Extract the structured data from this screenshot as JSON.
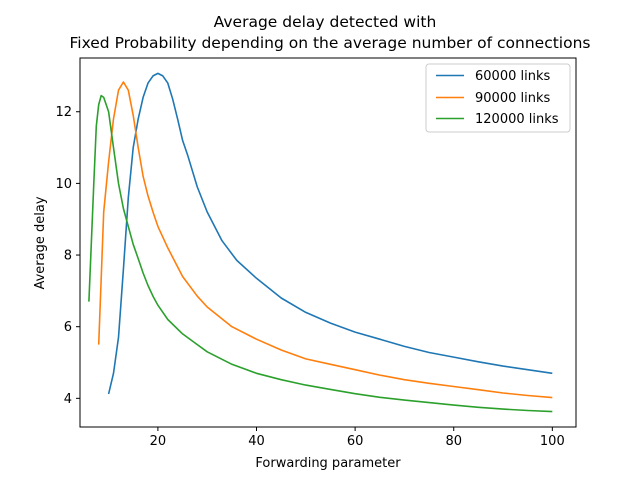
{
  "chart_data": {
    "type": "line",
    "title_lines": [
      "Average delay detected with",
      "Fixed Probability depending on the average number of connections"
    ],
    "xlabel": "Forwarding parameter",
    "ylabel": "Average delay",
    "xlim": [
      4.2,
      104.8
    ],
    "ylim": [
      3.2,
      13.5
    ],
    "xticks": [
      20,
      40,
      60,
      80,
      100
    ],
    "yticks": [
      4,
      6,
      8,
      10,
      12
    ],
    "legend_position": "top-right",
    "series": [
      {
        "name": "60000 links",
        "color": "#1f77b4",
        "points": [
          [
            10,
            4.12
          ],
          [
            11,
            4.7
          ],
          [
            12,
            5.7
          ],
          [
            13,
            7.6
          ],
          [
            14,
            9.6
          ],
          [
            15,
            11.0
          ],
          [
            16,
            11.8
          ],
          [
            17,
            12.4
          ],
          [
            18,
            12.8
          ],
          [
            19,
            13.0
          ],
          [
            20,
            13.07
          ],
          [
            21,
            13.0
          ],
          [
            22,
            12.8
          ],
          [
            23,
            12.35
          ],
          [
            24,
            11.8
          ],
          [
            25,
            11.2
          ],
          [
            26,
            10.8
          ],
          [
            28,
            9.9
          ],
          [
            30,
            9.2
          ],
          [
            33,
            8.4
          ],
          [
            36,
            7.85
          ],
          [
            40,
            7.35
          ],
          [
            45,
            6.8
          ],
          [
            50,
            6.4
          ],
          [
            55,
            6.1
          ],
          [
            60,
            5.85
          ],
          [
            65,
            5.65
          ],
          [
            70,
            5.45
          ],
          [
            75,
            5.28
          ],
          [
            80,
            5.15
          ],
          [
            85,
            5.02
          ],
          [
            90,
            4.9
          ],
          [
            95,
            4.8
          ],
          [
            100,
            4.7
          ]
        ]
      },
      {
        "name": "90000 links",
        "color": "#ff7f0e",
        "points": [
          [
            8,
            5.5
          ],
          [
            9,
            9.2
          ],
          [
            10,
            10.6
          ],
          [
            11,
            11.8
          ],
          [
            12,
            12.6
          ],
          [
            13,
            12.83
          ],
          [
            14,
            12.6
          ],
          [
            15,
            11.9
          ],
          [
            16,
            11.0
          ],
          [
            17,
            10.2
          ],
          [
            18,
            9.65
          ],
          [
            19,
            9.2
          ],
          [
            20,
            8.8
          ],
          [
            22,
            8.2
          ],
          [
            25,
            7.4
          ],
          [
            28,
            6.85
          ],
          [
            30,
            6.55
          ],
          [
            35,
            6.0
          ],
          [
            40,
            5.65
          ],
          [
            45,
            5.35
          ],
          [
            50,
            5.1
          ],
          [
            55,
            4.95
          ],
          [
            60,
            4.8
          ],
          [
            65,
            4.65
          ],
          [
            70,
            4.52
          ],
          [
            75,
            4.42
          ],
          [
            80,
            4.33
          ],
          [
            85,
            4.24
          ],
          [
            90,
            4.15
          ],
          [
            95,
            4.08
          ],
          [
            100,
            4.02
          ]
        ]
      },
      {
        "name": "120000 links",
        "color": "#2ca02c",
        "points": [
          [
            6,
            6.7
          ],
          [
            7,
            10.0
          ],
          [
            7.5,
            11.6
          ],
          [
            8,
            12.2
          ],
          [
            8.5,
            12.45
          ],
          [
            9,
            12.4
          ],
          [
            10,
            12.0
          ],
          [
            11,
            11.0
          ],
          [
            12,
            10.0
          ],
          [
            13,
            9.3
          ],
          [
            14,
            8.8
          ],
          [
            15,
            8.3
          ],
          [
            16,
            7.9
          ],
          [
            17,
            7.5
          ],
          [
            18,
            7.15
          ],
          [
            19,
            6.85
          ],
          [
            20,
            6.6
          ],
          [
            22,
            6.2
          ],
          [
            25,
            5.8
          ],
          [
            28,
            5.5
          ],
          [
            30,
            5.3
          ],
          [
            35,
            4.95
          ],
          [
            40,
            4.7
          ],
          [
            45,
            4.52
          ],
          [
            50,
            4.37
          ],
          [
            55,
            4.25
          ],
          [
            60,
            4.13
          ],
          [
            65,
            4.03
          ],
          [
            70,
            3.95
          ],
          [
            75,
            3.88
          ],
          [
            80,
            3.81
          ],
          [
            85,
            3.75
          ],
          [
            90,
            3.7
          ],
          [
            95,
            3.66
          ],
          [
            100,
            3.63
          ]
        ]
      }
    ]
  }
}
